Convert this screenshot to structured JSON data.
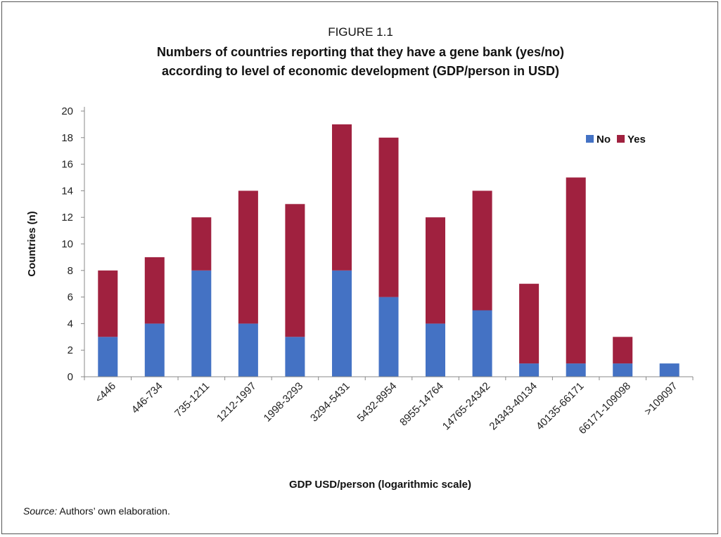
{
  "figure": {
    "label": "FIGURE 1.1",
    "title_line1": "Numbers of countries reporting that they have a gene bank (yes/no)",
    "title_line2": "according to level of economic development (GDP/person in USD)",
    "source_prefix": "Source:",
    "source_text": " Authors’ own elaboration."
  },
  "colors": {
    "no": "#4472C4",
    "yes": "#A0213F",
    "axis": "#888888"
  },
  "chart_data": {
    "type": "bar",
    "stacked": true,
    "categories": [
      "<446",
      "446-734",
      "735-1211",
      "1212-1997",
      "1998-3293",
      "3294-5431",
      "5432-8954",
      "8955-14764",
      "14765-24342",
      "24343-40134",
      "40135-66171",
      "66171-109098",
      ">109097"
    ],
    "series": [
      {
        "name": "No",
        "values": [
          3,
          4,
          8,
          4,
          3,
          8,
          6,
          4,
          5,
          1,
          1,
          1,
          1
        ]
      },
      {
        "name": "Yes",
        "values": [
          5,
          5,
          4,
          10,
          10,
          11,
          12,
          8,
          9,
          6,
          14,
          2,
          0
        ]
      }
    ],
    "xlabel": "GDP USD/person (logarithmic scale)",
    "ylabel": "Countries (n)",
    "ylim": [
      0,
      20
    ],
    "yticks": [
      0,
      2,
      4,
      6,
      8,
      10,
      12,
      14,
      16,
      18,
      20
    ],
    "grid": false,
    "legend_position": "top-right"
  }
}
